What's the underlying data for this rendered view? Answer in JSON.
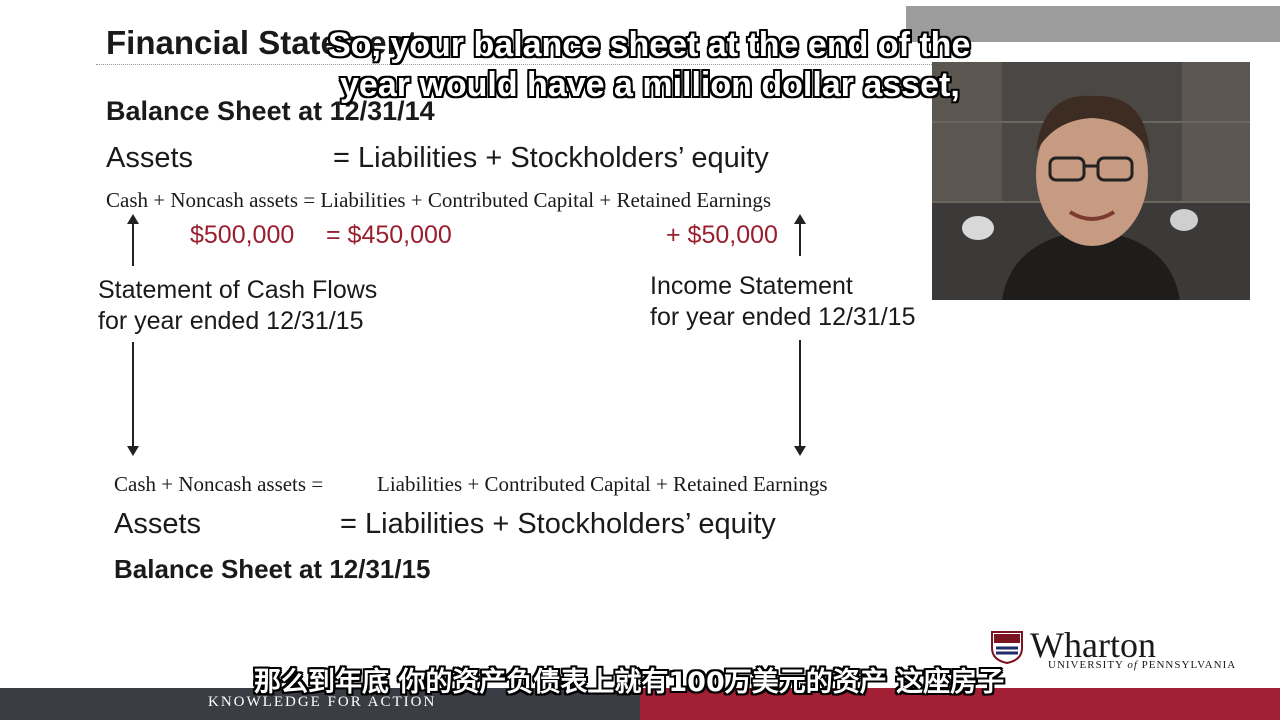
{
  "slide": {
    "title": "Financial Statements",
    "top_sheet": {
      "heading": "Balance Sheet at 12/31/14",
      "assets": "Assets",
      "equation": "=  Liabilities + Stockholders’ equity",
      "detail": "Cash + Noncash assets = Liabilities + Contributed Capital + Retained Earnings",
      "value_assets": "$500,000",
      "value_liabilities": "= $450,000",
      "value_retained": "+ $50,000"
    },
    "cash_flows_label": [
      "Statement of Cash Flows",
      "for year ended 12/31/15"
    ],
    "income_label": [
      "Income Statement",
      "for year ended 12/31/15"
    ],
    "bottom_sheet": {
      "detail_left": "Cash + Noncash assets  =",
      "detail_right": "Liabilities + Contributed Capital + Retained Earnings",
      "assets": "Assets",
      "equation": "=  Liabilities + Stockholders’ equity",
      "heading": "Balance Sheet at 12/31/15"
    }
  },
  "captions": {
    "english_line1": "So, your balance sheet at the end of the",
    "english_line2": "year would have a million dollar asset,",
    "chinese": "那么到年底 你的资产负债表上就有100万美元的资产 这座房子"
  },
  "branding": {
    "logo_name": "Wharton",
    "logo_sub_italic": "of",
    "logo_sub_left": "UNIVERSITY",
    "logo_sub_right": "PENNSYLVANIA",
    "tagline": "KNOWLEDGE FOR ACTION"
  },
  "colors": {
    "accent_red": "#a31f33",
    "footer_dark": "#3a3d44",
    "value_red": "#9a1f2e"
  }
}
